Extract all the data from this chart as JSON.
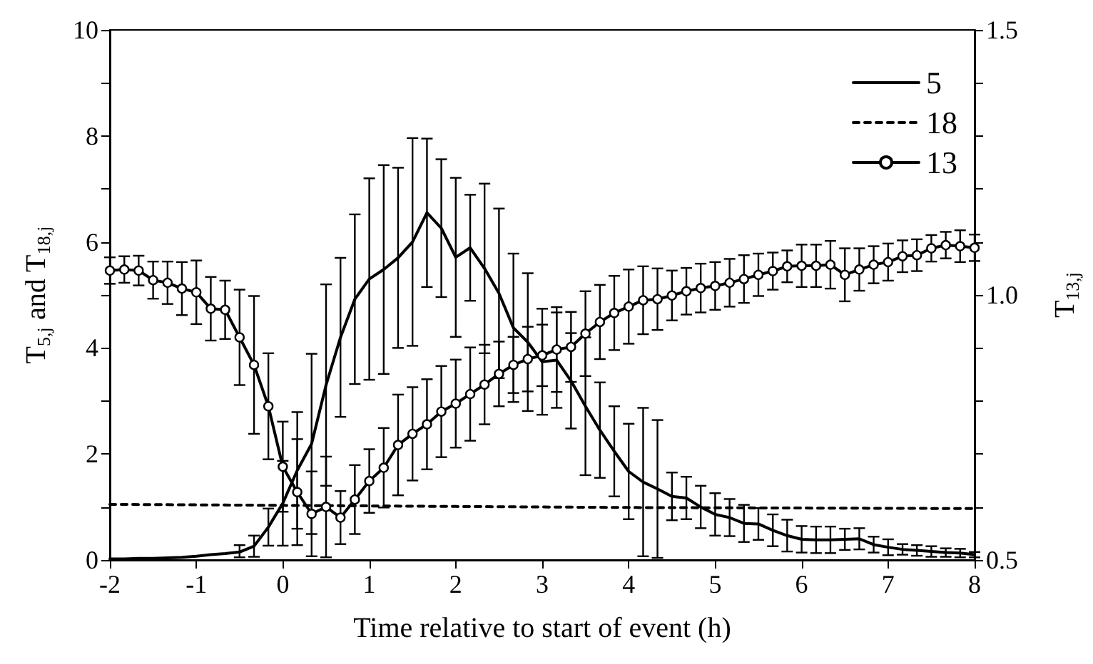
{
  "chart_data": {
    "type": "line",
    "xlabel": "Time relative to start of event (h)",
    "ylabel": "T$_{5,j}$ and T$_{18,j}$",
    "y2label": "T$_{13,j}$",
    "x": [
      -2,
      -1.833,
      -1.667,
      -1.5,
      -1.333,
      -1.167,
      -1,
      -0.833,
      -0.667,
      -0.5,
      -0.333,
      -0.167,
      0,
      0.167,
      0.333,
      0.5,
      0.667,
      0.833,
      1,
      1.167,
      1.333,
      1.5,
      1.667,
      1.833,
      2,
      2.167,
      2.333,
      2.5,
      2.667,
      2.833,
      3,
      3.167,
      3.333,
      3.5,
      3.667,
      3.833,
      4,
      4.167,
      4.333,
      4.5,
      4.667,
      4.833,
      5,
      5.167,
      5.333,
      5.5,
      5.667,
      5.833,
      6,
      6.167,
      6.333,
      6.5,
      6.667,
      6.833,
      7,
      7.167,
      7.333,
      7.5,
      7.667,
      7.833,
      8
    ],
    "series": [
      {
        "name": "5",
        "color": "#000000",
        "type": "line",
        "marker": "none",
        "line_style": "solid",
        "values": [
          0.02,
          0.02,
          0.03,
          0.03,
          0.04,
          0.05,
          0.07,
          0.1,
          0.12,
          0.15,
          0.26,
          0.62,
          1.07,
          1.69,
          2.19,
          3.3,
          4.2,
          4.92,
          5.3,
          5.48,
          5.7,
          6.0,
          6.55,
          6.26,
          5.71,
          5.89,
          5.5,
          5.03,
          4.38,
          4.11,
          3.74,
          3.77,
          3.38,
          2.9,
          2.45,
          2.05,
          1.67,
          1.47,
          1.34,
          1.2,
          1.17,
          1.0,
          0.86,
          0.8,
          0.69,
          0.68,
          0.56,
          0.46,
          0.39,
          0.38,
          0.38,
          0.39,
          0.4,
          0.29,
          0.24,
          0.2,
          0.18,
          0.16,
          0.14,
          0.13,
          0.1
        ],
        "errors": [
          null,
          null,
          null,
          null,
          null,
          null,
          null,
          null,
          null,
          [
            0.05,
            0.28
          ],
          0.2,
          0.35,
          0.8,
          1.1,
          1.7,
          1.9,
          1.5,
          1.6,
          1.9,
          1.97,
          1.7,
          1.96,
          1.4,
          1.3,
          1.5,
          1.0,
          1.6,
          1.6,
          1.4,
          1.3,
          1.0,
          0.9,
          0.9,
          1.3,
          0.9,
          0.85,
          0.9,
          1.4,
          1.3,
          0.45,
          0.4,
          0.4,
          0.4,
          0.35,
          0.35,
          0.3,
          0.3,
          0.3,
          0.25,
          0.25,
          0.25,
          0.2,
          0.2,
          0.15,
          0.15,
          0.1,
          0.1,
          0.1,
          0.08,
          0.08,
          0.05
        ]
      },
      {
        "name": "18",
        "color": "#000000",
        "type": "line",
        "marker": "none",
        "line_style": "dashed",
        "x": [
          -2,
          0,
          2,
          4,
          6,
          8
        ],
        "values": [
          1.05,
          1.03,
          1.01,
          0.99,
          0.98,
          0.97
        ]
      },
      {
        "name": "13",
        "color": "#000000",
        "type": "line",
        "marker": "circle",
        "line_style": "solid",
        "axis": "y2",
        "values": [
          1.046,
          1.048,
          1.046,
          1.028,
          1.023,
          1.012,
          1.005,
          0.974,
          0.972,
          0.92,
          0.868,
          0.79,
          0.676,
          0.628,
          0.587,
          0.6,
          0.58,
          0.614,
          0.649,
          0.674,
          0.717,
          0.738,
          0.756,
          0.78,
          0.795,
          0.813,
          0.831,
          0.851,
          0.868,
          0.879,
          0.886,
          0.897,
          0.902,
          0.927,
          0.949,
          0.966,
          0.978,
          0.99,
          0.992,
          0.999,
          1.007,
          1.013,
          1.017,
          1.023,
          1.03,
          1.038,
          1.045,
          1.054,
          1.055,
          1.055,
          1.057,
          1.038,
          1.048,
          1.057,
          1.062,
          1.073,
          1.075,
          1.088,
          1.094,
          1.092,
          1.089
        ],
        "errors": [
          0.025,
          0.025,
          0.028,
          0.035,
          0.04,
          0.05,
          0.06,
          0.06,
          0.055,
          0.09,
          0.13,
          0.1,
          0.085,
          0.1,
          0.08,
          0.095,
          0.05,
          0.065,
          0.06,
          0.075,
          0.095,
          0.088,
          0.085,
          0.086,
          0.083,
          0.088,
          0.075,
          0.061,
          0.053,
          0.061,
          0.058,
          0.08,
          0.066,
          0.08,
          0.07,
          0.07,
          0.07,
          0.064,
          0.058,
          0.047,
          0.044,
          0.046,
          0.045,
          0.045,
          0.045,
          0.04,
          0.035,
          0.03,
          0.04,
          0.04,
          0.045,
          0.05,
          0.04,
          0.035,
          0.035,
          0.03,
          0.03,
          0.025,
          0.025,
          0.03,
          0.025
        ]
      }
    ],
    "xlim": [
      -2,
      8
    ],
    "xticks": [
      -2,
      -1,
      0,
      1,
      2,
      3,
      4,
      5,
      6,
      7,
      8
    ],
    "ylim": [
      0,
      10
    ],
    "yticks": [
      0,
      {
        "value": 1,
        "label": null
      },
      2,
      {
        "value": 3,
        "label": null
      },
      4,
      {
        "value": 5,
        "label": null
      },
      6,
      {
        "value": 7,
        "label": null
      },
      8,
      {
        "value": 9,
        "label": null
      },
      10
    ],
    "y2lim": [
      0.5,
      1.5
    ],
    "y2ticks": [
      0.5,
      {
        "value": 0.6,
        "label": null
      },
      {
        "value": 0.7,
        "label": null
      },
      {
        "value": 0.8,
        "label": null
      },
      {
        "value": 0.9,
        "label": null
      },
      {
        "value": 1,
        "label": "1.0"
      },
      {
        "value": 1.1,
        "label": null
      },
      {
        "value": 1.2,
        "label": null
      },
      {
        "value": 1.3,
        "label": null
      },
      {
        "value": 1.4,
        "label": null
      },
      1.5
    ],
    "legend": "top right"
  }
}
